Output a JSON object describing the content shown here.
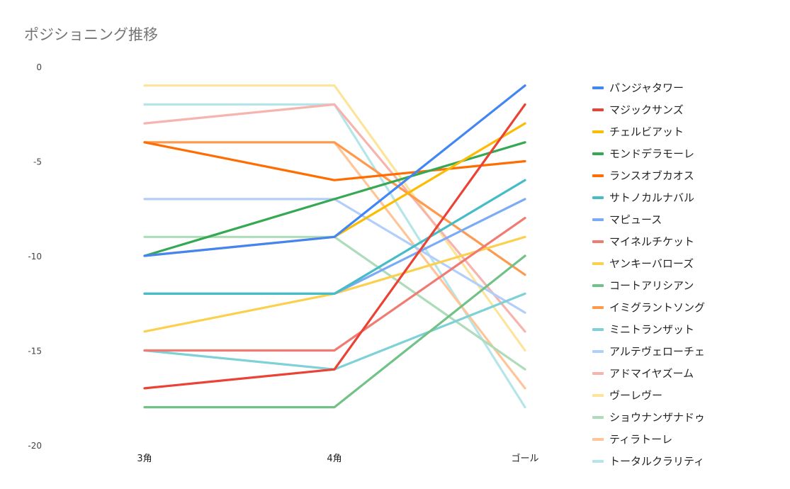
{
  "chart_data": {
    "type": "line",
    "title": "ポジショニング推移",
    "categories": [
      "3角",
      "4角",
      "ゴール"
    ],
    "ylim": [
      -20,
      0
    ],
    "yticks": [
      0,
      -5,
      -10,
      -15,
      -20
    ],
    "series": [
      {
        "name": "パンジャタワー",
        "color": "#4285f4",
        "values": [
          -10,
          -9,
          -1
        ]
      },
      {
        "name": "マジックサンズ",
        "color": "#ea4335",
        "values": [
          -17,
          -16,
          -2
        ]
      },
      {
        "name": "チェルビアット",
        "color": "#fbbc04",
        "values": [
          -10,
          -9,
          -3
        ]
      },
      {
        "name": "モンドデラモーレ",
        "color": "#34a853",
        "values": [
          -10,
          -7,
          -4
        ]
      },
      {
        "name": "ランスオブカオス",
        "color": "#ff6d01",
        "values": [
          -4,
          -6,
          -5
        ]
      },
      {
        "name": "サトノカルナバル",
        "color": "#46bdc6",
        "values": [
          -12,
          -12,
          -6
        ]
      },
      {
        "name": "マピュース",
        "color": "#7baaf7",
        "values": [
          -12,
          -12,
          -7
        ]
      },
      {
        "name": "マイネルチケット",
        "color": "#f07b72",
        "values": [
          -15,
          -15,
          -8
        ]
      },
      {
        "name": "ヤンキーバローズ",
        "color": "#fcd04f",
        "values": [
          -14,
          -12,
          -9
        ]
      },
      {
        "name": "コートアリシアン",
        "color": "#71c287",
        "values": [
          -18,
          -18,
          -10
        ]
      },
      {
        "name": "イミグラントソング",
        "color": "#ff994d",
        "values": [
          -4,
          -4,
          -11
        ]
      },
      {
        "name": "ミニトランザット",
        "color": "#7ed1d7",
        "values": [
          -15,
          -16,
          -12
        ]
      },
      {
        "name": "アルテヴェローチェ",
        "color": "#b3cefb",
        "values": [
          -7,
          -7,
          -13
        ]
      },
      {
        "name": "アドマイヤズーム",
        "color": "#f7b4ae",
        "values": [
          -3,
          -2,
          -14
        ]
      },
      {
        "name": "ヴーレヴー",
        "color": "#fde49b",
        "values": [
          -1,
          -1,
          -15
        ]
      },
      {
        "name": "ショウナンザナドゥ",
        "color": "#aedcba",
        "values": [
          -9,
          -9,
          -16
        ]
      },
      {
        "name": "ティラトーレ",
        "color": "#ffc599",
        "values": [
          -4,
          -4,
          -17
        ]
      },
      {
        "name": "トータルクラリティ",
        "color": "#b5e5e8",
        "values": [
          -2,
          -2,
          -18
        ]
      }
    ]
  }
}
